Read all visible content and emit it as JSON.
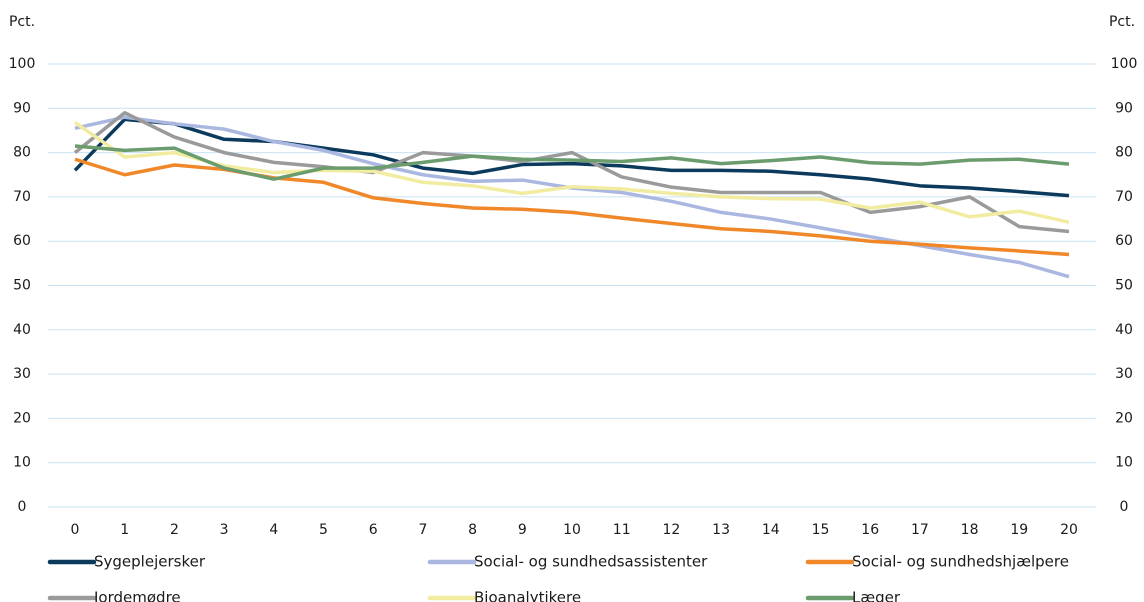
{
  "chart_data": {
    "type": "line",
    "y_label": "Pct.",
    "y2_label": "Pct.",
    "x": [
      0,
      1,
      2,
      3,
      4,
      5,
      6,
      7,
      8,
      9,
      10,
      11,
      12,
      13,
      14,
      15,
      16,
      17,
      18,
      19,
      20
    ],
    "xlim": [
      0,
      20
    ],
    "xticks": [
      0,
      1,
      2,
      3,
      4,
      5,
      6,
      7,
      8,
      9,
      10,
      11,
      12,
      13,
      14,
      15,
      16,
      17,
      18,
      19,
      20
    ],
    "ylim": [
      0,
      100
    ],
    "yticks": [
      0,
      10,
      20,
      30,
      40,
      50,
      60,
      70,
      80,
      90,
      100
    ],
    "y2lim": [
      0,
      100
    ],
    "y2ticks": [
      0,
      10,
      20,
      30,
      40,
      50,
      60,
      70,
      80,
      90,
      100
    ],
    "grid": true,
    "legend": "bottom",
    "series": [
      {
        "name": "Sygeplejersker",
        "color": "#0b3a5c",
        "values": [
          76,
          87.5,
          86.5,
          83,
          82.5,
          81,
          79.5,
          76.5,
          75.3,
          77.3,
          77.5,
          77,
          76,
          76,
          75.8,
          75,
          74,
          72.5,
          72,
          71.2,
          70.3
        ]
      },
      {
        "name": "Social- og sundhedsassistenter",
        "color": "#aab7e0",
        "values": [
          85.5,
          88,
          86.5,
          85.3,
          82.5,
          80.5,
          77.5,
          75,
          73.5,
          73.8,
          72,
          71,
          69,
          66.5,
          65,
          63,
          61,
          59,
          57,
          55.2,
          52
        ]
      },
      {
        "name": "Social- og sundhedshjælpere",
        "color": "#f0882a",
        "values": [
          78.5,
          75,
          77.2,
          76.2,
          74.3,
          73.3,
          69.8,
          68.5,
          67.5,
          67.2,
          66.5,
          65.2,
          64,
          62.8,
          62.2,
          61.2,
          60,
          59.3,
          58.5,
          57.8,
          57
        ]
      },
      {
        "name": "Jordemødre",
        "color": "#9a9a9a",
        "values": [
          80,
          89,
          83.5,
          80,
          77.8,
          76.8,
          75.5,
          80,
          79.2,
          78,
          80,
          74.5,
          72.2,
          71,
          71,
          71,
          66.5,
          67.8,
          70,
          63.3,
          62.2
        ]
      },
      {
        "name": "Bioanalytikere",
        "color": "#f1eca0",
        "values": [
          86.8,
          79,
          80,
          77,
          75.5,
          76,
          75.8,
          73.3,
          72.5,
          70.8,
          72.3,
          71.8,
          70.8,
          70,
          69.6,
          69.5,
          67.5,
          68.8,
          65.5,
          66.8,
          64.3
        ]
      },
      {
        "name": "Læger",
        "color": "#6b9c6e",
        "values": [
          81.5,
          80.5,
          81,
          76.5,
          74,
          76.5,
          76.5,
          77.8,
          79.2,
          78.5,
          78.3,
          78,
          78.8,
          77.5,
          78.2,
          79,
          77.7,
          77.4,
          78.3,
          78.5,
          77.4
        ]
      }
    ]
  }
}
